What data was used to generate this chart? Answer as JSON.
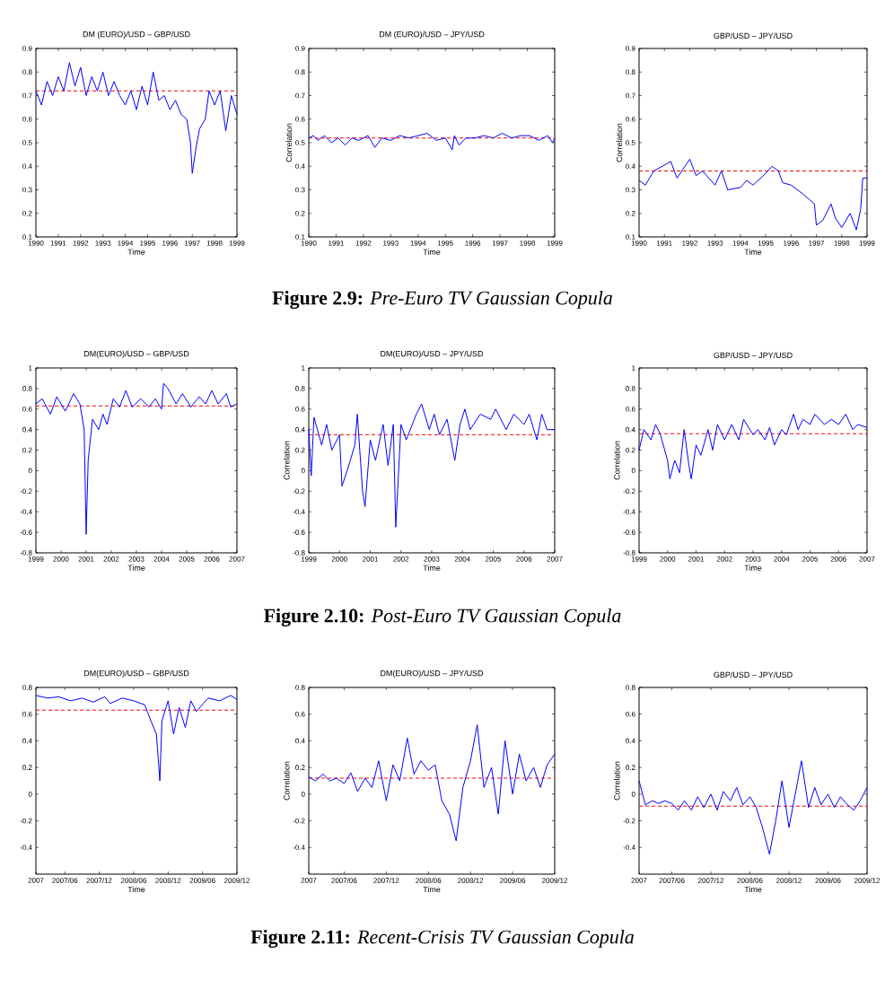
{
  "chart_data": [
    {
      "type": "line",
      "title": "DM (EURO)/USD – GBP/USD",
      "xlabel": "Time",
      "xlim": [
        "1990",
        "1999"
      ],
      "xticks": [
        "1990",
        "1991",
        "1992",
        "1993",
        "1994",
        "1995",
        "1996",
        "1997",
        "1998",
        "1999"
      ],
      "ylim": [
        0.1,
        0.9
      ],
      "yticks": [
        0.1,
        0.2,
        0.3,
        0.4,
        0.5,
        0.6,
        0.7,
        0.8,
        0.9
      ],
      "annotations": [
        "**Figure 2.9:** *Pre-Euro TV Gaussian Copula*"
      ],
      "ref_lines": [
        {
          "axis": "y",
          "value": 0.72,
          "color": "#ff0000",
          "line_style": "dashed"
        }
      ],
      "series": [
        {
          "color": "#0000ff",
          "x": [
            "1990-01",
            "1990-04",
            "1990-07",
            "1990-10",
            "1991-01",
            "1991-04",
            "1991-07",
            "1991-10",
            "1992-01",
            "1992-04",
            "1992-07",
            "1992-10",
            "1993-01",
            "1993-04",
            "1993-07",
            "1993-10",
            "1994-01",
            "1994-04",
            "1994-07",
            "1994-10",
            "1995-01",
            "1995-04",
            "1995-07",
            "1995-10",
            "1996-01",
            "1996-04",
            "1996-07",
            "1996-10",
            "1996-12",
            "1997-01",
            "1997-03",
            "1997-05",
            "1997-08",
            "1997-10",
            "1998-01",
            "1998-04",
            "1998-07",
            "1998-10",
            "1999-01"
          ],
          "values": [
            0.72,
            0.66,
            0.76,
            0.7,
            0.78,
            0.72,
            0.84,
            0.74,
            0.82,
            0.7,
            0.78,
            0.72,
            0.8,
            0.7,
            0.76,
            0.7,
            0.66,
            0.72,
            0.64,
            0.74,
            0.66,
            0.8,
            0.68,
            0.7,
            0.64,
            0.68,
            0.62,
            0.6,
            0.5,
            0.37,
            0.48,
            0.56,
            0.6,
            0.72,
            0.66,
            0.72,
            0.55,
            0.7,
            0.62
          ]
        }
      ]
    },
    {
      "type": "line",
      "title": "DM (EURO)/USD – JPY/USD",
      "xlabel": "Time",
      "ylabel": "Correlation",
      "xlim": [
        "1990",
        "1999"
      ],
      "xticks": [
        "1990",
        "1991",
        "1992",
        "1993",
        "1994",
        "1995",
        "1996",
        "1997",
        "1998",
        "1999"
      ],
      "ylim": [
        0.1,
        0.9
      ],
      "yticks": [
        0.1,
        0.2,
        0.3,
        0.4,
        0.5,
        0.6,
        0.7,
        0.8,
        0.9
      ],
      "ref_lines": [
        {
          "axis": "y",
          "value": 0.52,
          "color": "#ff0000",
          "line_style": "dashed"
        }
      ],
      "series": [
        {
          "color": "#0000ff",
          "x": [
            "1990-01",
            "1990-03",
            "1990-05",
            "1990-08",
            "1990-11",
            "1991-02",
            "1991-05",
            "1991-08",
            "1991-11",
            "1992-03",
            "1992-06",
            "1992-09",
            "1993-01",
            "1993-05",
            "1993-09",
            "1994-01",
            "1994-05",
            "1994-09",
            "1995-01",
            "1995-04",
            "1995-05",
            "1995-07",
            "1995-10",
            "1996-02",
            "1996-06",
            "1996-10",
            "1997-02",
            "1997-06",
            "1997-10",
            "1998-02",
            "1998-06",
            "1998-10",
            "1998-12",
            "1999-01"
          ],
          "values": [
            0.52,
            0.53,
            0.51,
            0.53,
            0.5,
            0.52,
            0.49,
            0.52,
            0.51,
            0.53,
            0.48,
            0.52,
            0.51,
            0.53,
            0.52,
            0.53,
            0.54,
            0.51,
            0.52,
            0.47,
            0.53,
            0.49,
            0.52,
            0.52,
            0.53,
            0.52,
            0.54,
            0.52,
            0.53,
            0.53,
            0.51,
            0.53,
            0.5,
            0.52
          ]
        }
      ]
    },
    {
      "type": "line",
      "title": "GBP/USD – JPY/USD",
      "xlabel": "Time",
      "ylabel": "Correlation",
      "xlim": [
        "1990",
        "1999"
      ],
      "xticks": [
        "1990",
        "1991",
        "1992",
        "1993",
        "1994",
        "1995",
        "1996",
        "1997",
        "1998",
        "1999"
      ],
      "ylim": [
        0.1,
        0.9
      ],
      "yticks": [
        0.1,
        0.2,
        0.3,
        0.4,
        0.5,
        0.6,
        0.7,
        0.8,
        0.9
      ],
      "ref_lines": [
        {
          "axis": "y",
          "value": 0.38,
          "color": "#ff0000",
          "line_style": "dashed"
        }
      ],
      "series": [
        {
          "color": "#0000ff",
          "x": [
            "1990-01",
            "1990-04",
            "1990-08",
            "1991-04",
            "1991-07",
            "1992-01",
            "1992-04",
            "1992-07",
            "1993-01",
            "1993-04",
            "1993-07",
            "1994-01",
            "1994-04",
            "1994-07",
            "1995-01",
            "1995-04",
            "1995-07",
            "1995-09",
            "1996-01",
            "1996-07",
            "1996-12",
            "1997-01",
            "1997-04",
            "1997-08",
            "1997-10",
            "1998-01",
            "1998-05",
            "1998-08",
            "1998-10",
            "1998-11",
            "1999-01"
          ],
          "values": [
            0.34,
            0.32,
            0.38,
            0.42,
            0.35,
            0.43,
            0.36,
            0.38,
            0.32,
            0.38,
            0.3,
            0.31,
            0.34,
            0.32,
            0.37,
            0.4,
            0.38,
            0.33,
            0.32,
            0.28,
            0.24,
            0.15,
            0.17,
            0.24,
            0.18,
            0.14,
            0.2,
            0.13,
            0.22,
            0.35,
            0.35
          ]
        }
      ]
    },
    {
      "type": "line",
      "title": "DM(EURO)/USD – GBP/USD",
      "xlabel": "Time",
      "xlim": [
        "1999",
        "2007"
      ],
      "xticks": [
        "1999",
        "2000",
        "2001",
        "2002",
        "2003",
        "2004",
        "2005",
        "2006",
        "2007"
      ],
      "ylim": [
        -0.8,
        1
      ],
      "yticks": [
        -0.8,
        -0.6,
        -0.4,
        -0.2,
        0,
        0.2,
        0.4,
        0.6,
        0.8,
        1
      ],
      "annotations": [
        "**Figure 2.10:** *Post-Euro TV Gaussian Copula*"
      ],
      "ref_lines": [
        {
          "axis": "y",
          "value": 0.63,
          "color": "#ff0000",
          "line_style": "dashed"
        }
      ],
      "series": [
        {
          "color": "#0000ff",
          "x": [
            "1999-01",
            "1999-04",
            "1999-08",
            "1999-11",
            "2000-03",
            "2000-07",
            "2000-10",
            "2000-12",
            "2001-01",
            "2001-02",
            "2001-04",
            "2001-07",
            "2001-09",
            "2001-11",
            "2002-02",
            "2002-05",
            "2002-08",
            "2002-11",
            "2003-03",
            "2003-07",
            "2003-10",
            "2004-01",
            "2004-02",
            "2004-04",
            "2004-08",
            "2004-11",
            "2005-03",
            "2005-07",
            "2005-10",
            "2006-01",
            "2006-04",
            "2006-08",
            "2006-10",
            "2007-01"
          ],
          "values": [
            0.65,
            0.7,
            0.55,
            0.72,
            0.58,
            0.75,
            0.65,
            0.4,
            -0.62,
            0.1,
            0.5,
            0.4,
            0.55,
            0.45,
            0.7,
            0.62,
            0.78,
            0.62,
            0.7,
            0.62,
            0.7,
            0.6,
            0.85,
            0.8,
            0.65,
            0.75,
            0.62,
            0.72,
            0.65,
            0.78,
            0.65,
            0.75,
            0.62,
            0.65
          ]
        }
      ]
    },
    {
      "type": "line",
      "title": "DM(EURO)/USD – JPY/USD",
      "xlabel": "Time",
      "ylabel": "Correlation",
      "xlim": [
        "1999",
        "2007"
      ],
      "xticks": [
        "1999",
        "2000",
        "2001",
        "2002",
        "2003",
        "2004",
        "2005",
        "2006",
        "2007"
      ],
      "ylim": [
        -0.8,
        1
      ],
      "yticks": [
        -0.8,
        -0.6,
        -0.4,
        -0.2,
        0,
        0.2,
        0.4,
        0.6,
        0.8,
        1
      ],
      "ref_lines": [
        {
          "axis": "y",
          "value": 0.35,
          "color": "#ff0000",
          "line_style": "dashed"
        }
      ],
      "series": [
        {
          "color": "#0000ff",
          "x": [
            "1999-01",
            "1999-02",
            "1999-03",
            "1999-06",
            "1999-08",
            "1999-10",
            "2000-01",
            "2000-02",
            "2000-04",
            "2000-07",
            "2000-08",
            "2000-10",
            "2000-11",
            "2001-01",
            "2001-03",
            "2001-06",
            "2001-08",
            "2001-10",
            "2001-11",
            "2002-01",
            "2002-03",
            "2002-07",
            "2002-09",
            "2002-12",
            "2003-02",
            "2003-04",
            "2003-07",
            "2003-10",
            "2003-12",
            "2004-02",
            "2004-04",
            "2004-08",
            "2004-12",
            "2005-02",
            "2005-06",
            "2005-09",
            "2006-01",
            "2006-03",
            "2006-06",
            "2006-08",
            "2006-10",
            "2007-01"
          ],
          "values": [
            0.4,
            -0.05,
            0.52,
            0.25,
            0.45,
            0.2,
            0.35,
            -0.15,
            0.0,
            0.25,
            0.55,
            -0.2,
            -0.35,
            0.3,
            0.1,
            0.45,
            0.05,
            0.45,
            -0.55,
            0.45,
            0.3,
            0.55,
            0.65,
            0.4,
            0.55,
            0.35,
            0.5,
            0.1,
            0.45,
            0.6,
            0.4,
            0.55,
            0.5,
            0.6,
            0.4,
            0.55,
            0.45,
            0.55,
            0.3,
            0.55,
            0.4,
            0.4
          ]
        }
      ]
    },
    {
      "type": "line",
      "title": "GBP/USD – JPY/USD",
      "xlabel": "Time",
      "ylabel": "Correlation",
      "xlim": [
        "1999",
        "2007"
      ],
      "xticks": [
        "1999",
        "2000",
        "2001",
        "2002",
        "2003",
        "2004",
        "2005",
        "2006",
        "2007"
      ],
      "ylim": [
        -0.8,
        1
      ],
      "yticks": [
        -0.8,
        -0.6,
        -0.4,
        -0.2,
        0,
        0.2,
        0.4,
        0.6,
        0.8,
        1
      ],
      "ref_lines": [
        {
          "axis": "y",
          "value": 0.36,
          "color": "#ff0000",
          "line_style": "dashed"
        }
      ],
      "series": [
        {
          "color": "#0000ff",
          "x": [
            "1999-01",
            "1999-03",
            "1999-06",
            "1999-08",
            "1999-10",
            "2000-01",
            "2000-02",
            "2000-04",
            "2000-06",
            "2000-08",
            "2000-10",
            "2000-11",
            "2001-01",
            "2001-03",
            "2001-06",
            "2001-08",
            "2001-10",
            "2002-01",
            "2002-04",
            "2002-07",
            "2002-09",
            "2003-01",
            "2003-03",
            "2003-06",
            "2003-08",
            "2003-10",
            "2004-01",
            "2004-03",
            "2004-06",
            "2004-08",
            "2004-10",
            "2005-01",
            "2005-03",
            "2005-07",
            "2005-10",
            "2006-01",
            "2006-04",
            "2006-07",
            "2006-09",
            "2007-01"
          ],
          "values": [
            0.2,
            0.4,
            0.3,
            0.45,
            0.35,
            0.1,
            -0.08,
            0.1,
            -0.02,
            0.4,
            0.05,
            -0.08,
            0.25,
            0.15,
            0.4,
            0.2,
            0.45,
            0.3,
            0.45,
            0.3,
            0.5,
            0.35,
            0.4,
            0.3,
            0.42,
            0.25,
            0.4,
            0.35,
            0.55,
            0.4,
            0.5,
            0.45,
            0.55,
            0.45,
            0.5,
            0.45,
            0.55,
            0.4,
            0.45,
            0.42
          ]
        }
      ]
    },
    {
      "type": "line",
      "title": "DM(EURO)/USD – GBP/USD",
      "xlabel": "Time",
      "xlim": [
        "2007-01",
        "2009-12"
      ],
      "xticks": [
        {
          "value": "2007-01",
          "label": "2007"
        },
        {
          "value": "2007-06",
          "label": "2007/06"
        },
        {
          "value": "2007-12",
          "label": "2007/12"
        },
        {
          "value": "2008-06",
          "label": "2008/06"
        },
        {
          "value": "2008-12",
          "label": "2008/12"
        },
        {
          "value": "2009-06",
          "label": "2009/06"
        },
        {
          "value": "2009-12",
          "label": "2009/12"
        }
      ],
      "ylim": [
        -0.6,
        0.8
      ],
      "yticks": [
        -0.4,
        -0.2,
        0,
        0.2,
        0.4,
        0.6,
        0.8
      ],
      "annotations": [
        "**Figure 2.11:** *Recent-Crisis TV Gaussian Copula*"
      ],
      "ref_lines": [
        {
          "axis": "y",
          "value": 0.63,
          "color": "#ff0000",
          "line_style": "dashed"
        }
      ],
      "series": [
        {
          "color": "#0000ff",
          "x": [
            "2007-01-01",
            "2007-03-01",
            "2007-05-01",
            "2007-07-01",
            "2007-09-01",
            "2007-11-01",
            "2008-01-01",
            "2008-02-01",
            "2008-04-01",
            "2008-06-01",
            "2008-08-01",
            "2008-09-01",
            "2008-10-01",
            "2008-10-20",
            "2008-11-01",
            "2008-12-01",
            "2009-01-01",
            "2009-02-01",
            "2009-03-01",
            "2009-04-01",
            "2009-05-01",
            "2009-07-01",
            "2009-09-01",
            "2009-11-01",
            "2009-12-01"
          ],
          "values": [
            0.74,
            0.72,
            0.73,
            0.7,
            0.72,
            0.69,
            0.73,
            0.68,
            0.72,
            0.7,
            0.67,
            0.55,
            0.45,
            0.1,
            0.55,
            0.7,
            0.45,
            0.65,
            0.5,
            0.7,
            0.62,
            0.72,
            0.7,
            0.74,
            0.71
          ]
        }
      ]
    },
    {
      "type": "line",
      "title": "DM(EURO)/USD – JPY/USD",
      "xlabel": "Time",
      "ylabel": "Correlation",
      "xlim": [
        "2007-01",
        "2009-12"
      ],
      "xticks": [
        {
          "value": "2007-01",
          "label": "2007"
        },
        {
          "value": "2007-06",
          "label": "2007/06"
        },
        {
          "value": "2007-12",
          "label": "2007/12"
        },
        {
          "value": "2008-06",
          "label": "2008/06"
        },
        {
          "value": "2008-12",
          "label": "2008/12"
        },
        {
          "value": "2009-06",
          "label": "2009/06"
        },
        {
          "value": "2009-12",
          "label": "2009/12"
        }
      ],
      "ylim": [
        -0.6,
        0.8
      ],
      "yticks": [
        -0.4,
        -0.2,
        0,
        0.2,
        0.4,
        0.6,
        0.8
      ],
      "ref_lines": [
        {
          "axis": "y",
          "value": 0.12,
          "color": "#ff0000",
          "line_style": "dashed"
        }
      ],
      "series": [
        {
          "color": "#0000ff",
          "x": [
            "2007-01",
            "2007-02",
            "2007-03",
            "2007-04",
            "2007-05",
            "2007-06",
            "2007-07",
            "2007-08",
            "2007-09",
            "2007-10",
            "2007-11",
            "2007-12",
            "2008-01",
            "2008-02",
            "2008-03",
            "2008-04",
            "2008-05",
            "2008-06",
            "2008-07",
            "2008-08",
            "2008-09",
            "2008-10",
            "2008-11",
            "2008-12",
            "2009-01",
            "2009-02",
            "2009-03",
            "2009-04",
            "2009-05",
            "2009-06",
            "2009-07",
            "2009-08",
            "2009-09",
            "2009-10",
            "2009-11",
            "2009-12"
          ],
          "values": [
            0.13,
            0.1,
            0.15,
            0.1,
            0.12,
            0.08,
            0.16,
            0.02,
            0.12,
            0.05,
            0.25,
            -0.05,
            0.22,
            0.1,
            0.42,
            0.15,
            0.25,
            0.18,
            0.22,
            -0.05,
            -0.15,
            -0.35,
            0.05,
            0.25,
            0.52,
            0.05,
            0.2,
            -0.15,
            0.4,
            0.0,
            0.3,
            0.1,
            0.2,
            0.05,
            0.22,
            0.3
          ]
        }
      ]
    },
    {
      "type": "line",
      "title": "GBP/USD – JPY/USD",
      "xlabel": "Time",
      "ylabel": "Correlation",
      "xlim": [
        "2007-01",
        "2009-12"
      ],
      "xticks": [
        {
          "value": "2007-01",
          "label": "2007"
        },
        {
          "value": "2007-06",
          "label": "2007/06"
        },
        {
          "value": "2007-12",
          "label": "2007/12"
        },
        {
          "value": "2008-06",
          "label": "2008/06"
        },
        {
          "value": "2008-12",
          "label": "2008/12"
        },
        {
          "value": "2009-06",
          "label": "2009/06"
        },
        {
          "value": "2009-12",
          "label": "2009/12"
        }
      ],
      "ylim": [
        -0.6,
        0.8
      ],
      "yticks": [
        -0.4,
        -0.2,
        0,
        0.2,
        0.4,
        0.6,
        0.8
      ],
      "ref_lines": [
        {
          "axis": "y",
          "value": -0.09,
          "color": "#ff0000",
          "line_style": "dashed"
        }
      ],
      "series": [
        {
          "color": "#0000ff",
          "x": [
            "2007-01",
            "2007-02",
            "2007-03",
            "2007-04",
            "2007-05",
            "2007-06",
            "2007-07",
            "2007-08",
            "2007-09",
            "2007-10",
            "2007-11",
            "2007-12",
            "2008-01",
            "2008-02",
            "2008-03",
            "2008-04",
            "2008-05",
            "2008-06",
            "2008-07",
            "2008-08",
            "2008-09",
            "2008-10",
            "2008-11",
            "2008-12",
            "2009-01",
            "2009-02",
            "2009-03",
            "2009-04",
            "2009-05",
            "2009-06",
            "2009-07",
            "2009-08",
            "2009-09",
            "2009-10",
            "2009-11",
            "2009-12"
          ],
          "values": [
            0.1,
            -0.08,
            -0.05,
            -0.07,
            -0.05,
            -0.07,
            -0.12,
            -0.05,
            -0.12,
            -0.02,
            -0.1,
            0.0,
            -0.12,
            0.02,
            -0.05,
            0.05,
            -0.08,
            -0.02,
            -0.1,
            -0.25,
            -0.45,
            -0.2,
            0.1,
            -0.25,
            0.0,
            0.25,
            -0.1,
            0.05,
            -0.08,
            0.0,
            -0.1,
            -0.02,
            -0.08,
            -0.12,
            -0.05,
            0.05
          ]
        }
      ]
    }
  ]
}
